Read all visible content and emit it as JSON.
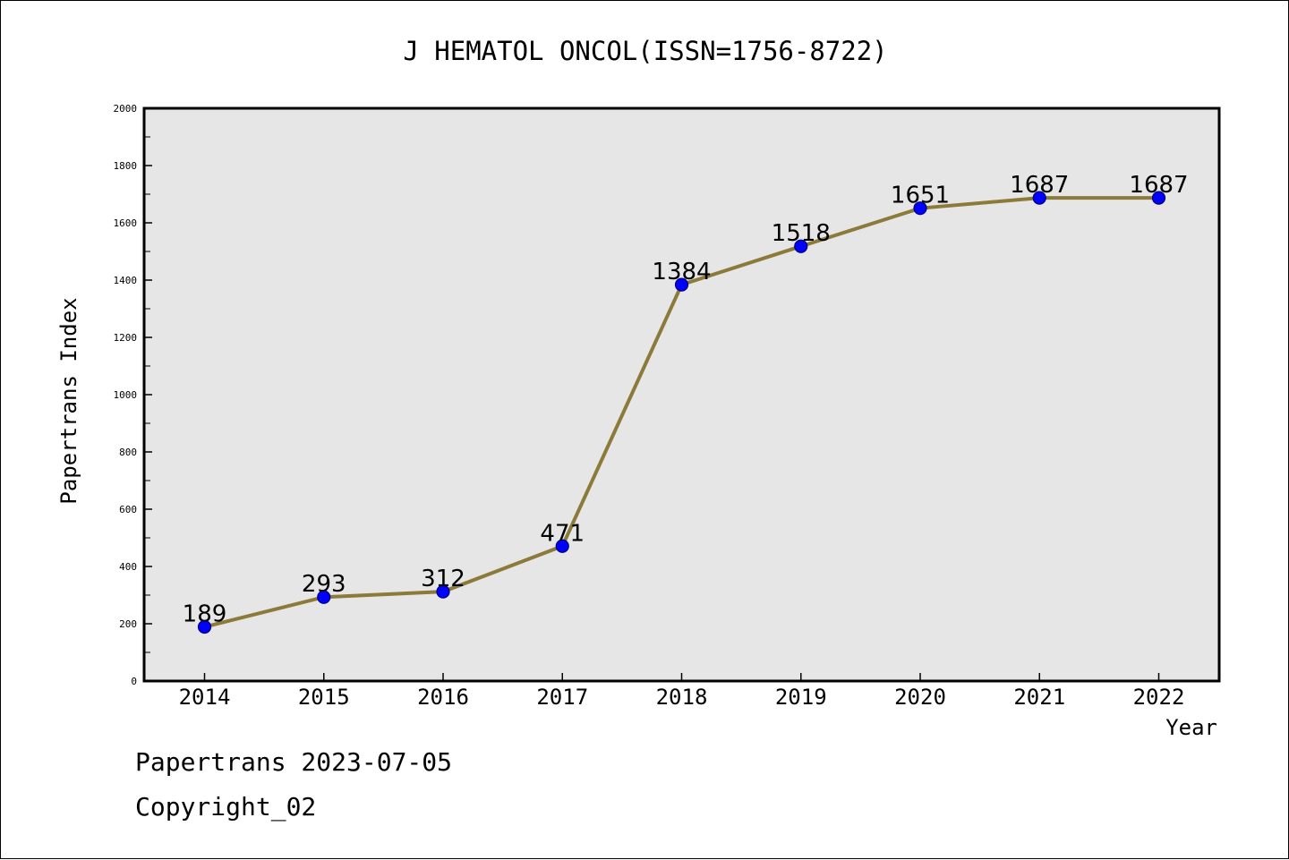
{
  "footer": {
    "line1": "Papertrans 2023-07-05",
    "line2": "Copyright_02"
  },
  "colors": {
    "background": "#ffffff",
    "plot_background": "#e6e6e6",
    "line": "#8c7a3a",
    "marker_fill": "#0000ff",
    "marker_edge": "#00007a",
    "axis": "#000000"
  },
  "chart_data": {
    "type": "line",
    "title": "J HEMATOL ONCOL(ISSN=1756-8722)",
    "xlabel": "Year",
    "ylabel": "Papertrans Index",
    "categories": [
      "2014",
      "2015",
      "2016",
      "2017",
      "2018",
      "2019",
      "2020",
      "2021",
      "2022"
    ],
    "series": [
      {
        "values": [
          189,
          293,
          312,
          471,
          1384,
          1518,
          1651,
          1687,
          1687
        ],
        "labels": [
          "189",
          "293",
          "312",
          "471",
          "1384",
          "1518",
          "1651",
          "1687",
          "1687"
        ]
      }
    ],
    "ylim": [
      0,
      2000
    ],
    "yticks": [
      "0",
      "200",
      "400",
      "600",
      "800",
      "1000",
      "1200",
      "1400",
      "1600",
      "1800",
      "2000"
    ],
    "grid": false,
    "legend": "none"
  }
}
